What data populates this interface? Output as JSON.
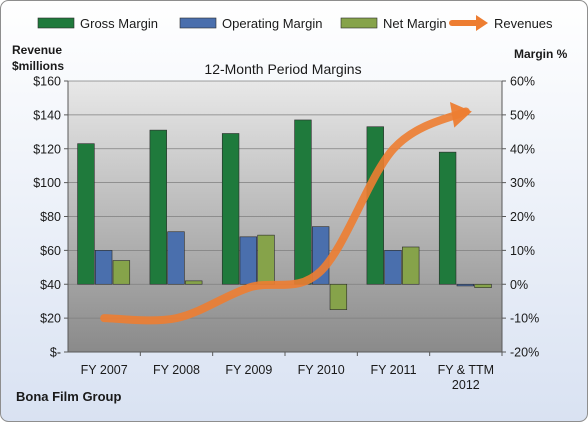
{
  "chart_data": {
    "type": "bar",
    "title": "12-Month Period Margins",
    "company": "Bona Film Group",
    "categories": [
      "FY 2007",
      "FY 2008",
      "FY 2009",
      "FY 2010",
      "FY 2011",
      "FY & TTM 2012"
    ],
    "left_axis": {
      "label_line1": "Revenue",
      "label_line2": "$millions",
      "ticks": [
        "$-",
        "$20",
        "$40",
        "$60",
        "$80",
        "$100",
        "$120",
        "$140",
        "$160"
      ],
      "ylim": [
        0,
        160
      ]
    },
    "right_axis": {
      "label": "Margin %",
      "ticks": [
        "-20%",
        "-10%",
        "0%",
        "10%",
        "20%",
        "30%",
        "40%",
        "50%",
        "60%"
      ],
      "ylim": [
        -20,
        60
      ],
      "unit": "%"
    },
    "series": [
      {
        "name": "Gross Margin",
        "kind": "bar",
        "axis": "right",
        "color": "#1f7a3c",
        "values": [
          41.5,
          45.5,
          44.5,
          48.5,
          46.5,
          39
        ]
      },
      {
        "name": "Operating Margin",
        "kind": "bar",
        "axis": "right",
        "color": "#4a6fad",
        "values": [
          10,
          15.5,
          14,
          17,
          10,
          -0.5
        ]
      },
      {
        "name": "Net Margin",
        "kind": "bar",
        "axis": "right",
        "color": "#86a34a",
        "values": [
          7,
          1,
          14.5,
          -7.5,
          11,
          -1
        ]
      },
      {
        "name": "Revenues",
        "kind": "line",
        "axis": "left",
        "color": "#ed7d31",
        "values": [
          20,
          20,
          38,
          48,
          120,
          142
        ]
      }
    ],
    "grid": true,
    "legend_position": "top"
  }
}
